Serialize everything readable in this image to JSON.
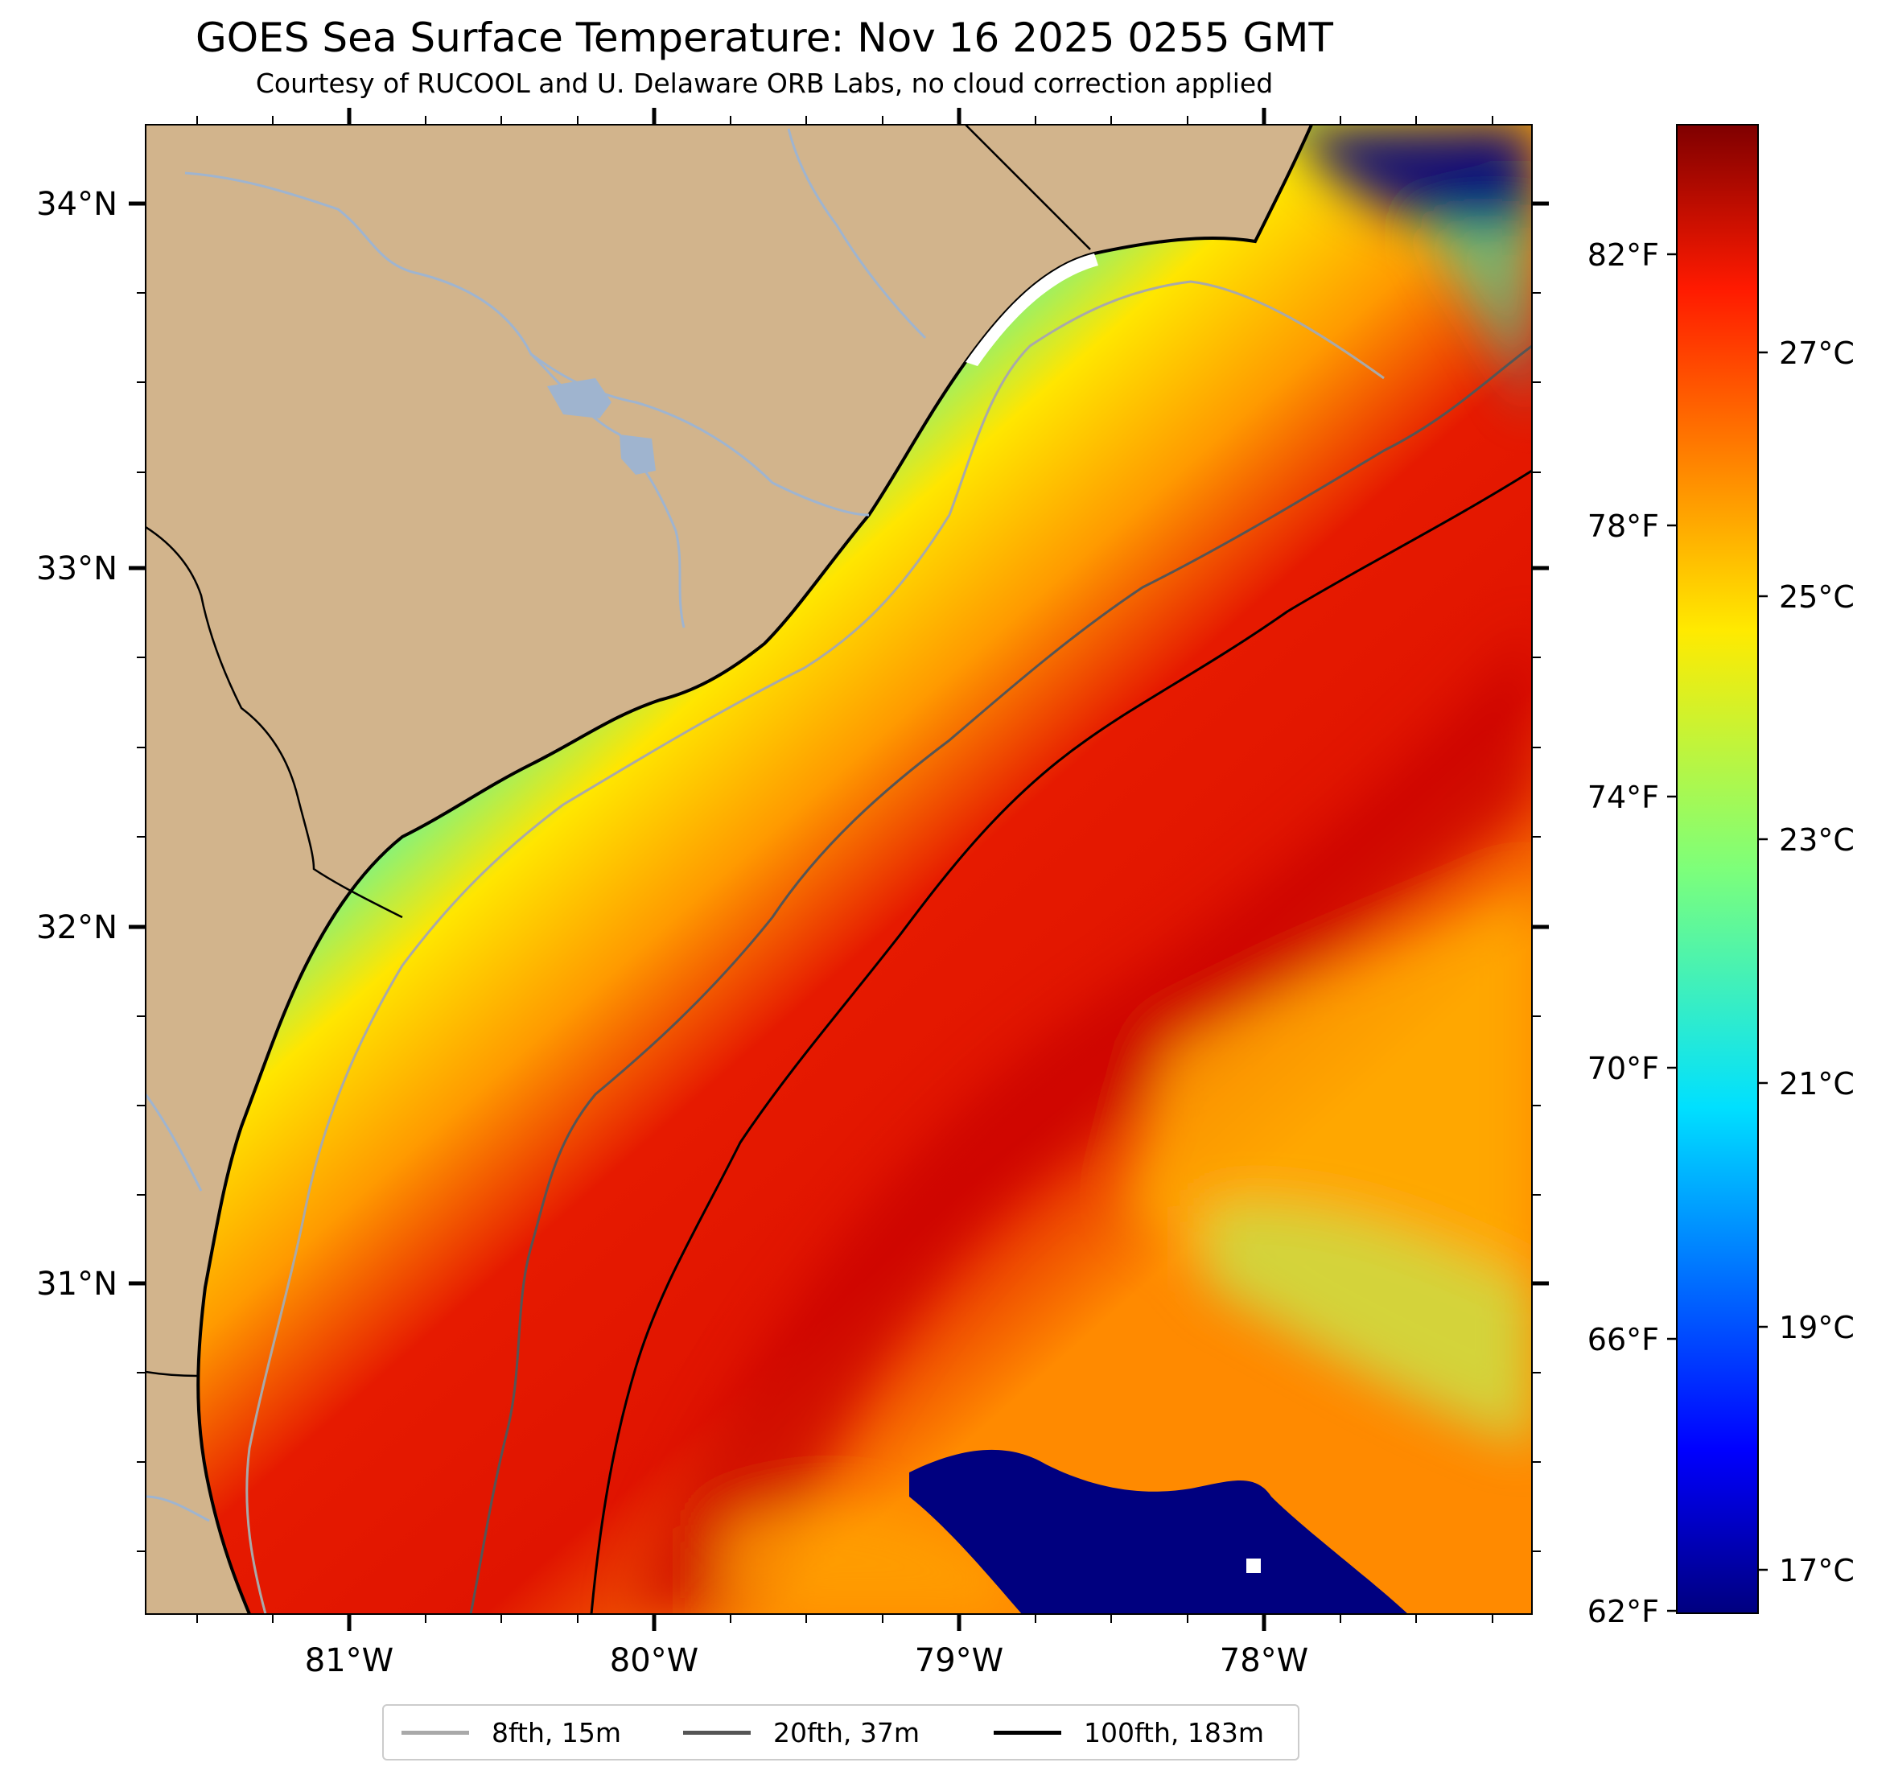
{
  "title": "GOES Sea Surface Temperature: Nov 16 2025 0255 GMT",
  "subtitle": "Courtesy of RUCOOL and U. Delaware ORB Labs, no cloud correction applied",
  "map": {
    "lat_labels": [
      "34°N",
      "33°N",
      "32°N",
      "31°N"
    ],
    "lon_labels": [
      "81°W",
      "80°W",
      "79°W",
      "78°W"
    ],
    "land_color": "#d2b48c"
  },
  "colorbar": {
    "colormap": "jet",
    "fahrenheit_labels": [
      "82°F",
      "78°F",
      "74°F",
      "70°F",
      "66°F",
      "62°F"
    ],
    "celsius_labels": [
      "27°C",
      "25°C",
      "23°C",
      "21°C",
      "19°C",
      "17°C"
    ],
    "celsius_range": [
      16.3,
      29.0
    ]
  },
  "legend": [
    {
      "label": "8fth, 15m",
      "color": "#a9a9a9"
    },
    {
      "label": "20fth, 37m",
      "color": "#555555"
    },
    {
      "label": "100fth, 183m",
      "color": "#000000"
    }
  ]
}
